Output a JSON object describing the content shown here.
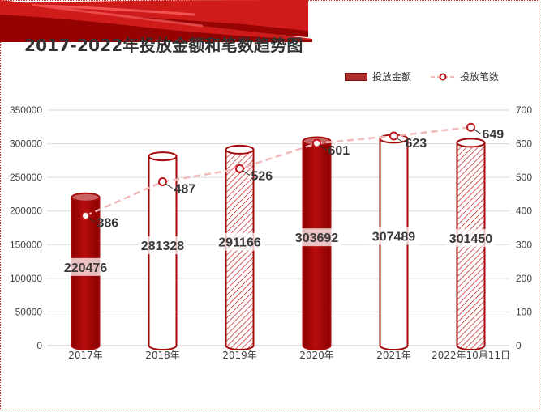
{
  "chart_data": {
    "type": "bar+line",
    "title": "2017-2022年投放金额和笔数趋势图",
    "categories": [
      "2017年",
      "2018年",
      "2019年",
      "2020年",
      "2021年",
      "2022年10月11日"
    ],
    "series": [
      {
        "name": "投放金额",
        "type": "bar",
        "axis": "left",
        "values": [
          220476,
          281328,
          291166,
          303692,
          307489,
          301450
        ],
        "styles": [
          "solid",
          "outline",
          "hatched",
          "solid",
          "outline",
          "hatched"
        ]
      },
      {
        "name": "投放笔数",
        "type": "line",
        "axis": "right",
        "values": [
          386,
          487,
          526,
          601,
          623,
          649
        ]
      }
    ],
    "y_left": {
      "min": 0,
      "max": 350000,
      "ticks": [
        "0",
        "50000",
        "100000",
        "150000",
        "200000",
        "250000",
        "300000",
        "350000"
      ]
    },
    "y_right": {
      "min": 0,
      "max": 700,
      "ticks": [
        "0",
        "100",
        "200",
        "300",
        "400",
        "500",
        "600",
        "700"
      ]
    },
    "legend_position": "top-right",
    "colors": {
      "bar": "#a50a0a",
      "bar_light": "#ffffff",
      "line": "#f2b9b9",
      "marker": "#c0161b",
      "accent": "#d01b1b"
    }
  }
}
